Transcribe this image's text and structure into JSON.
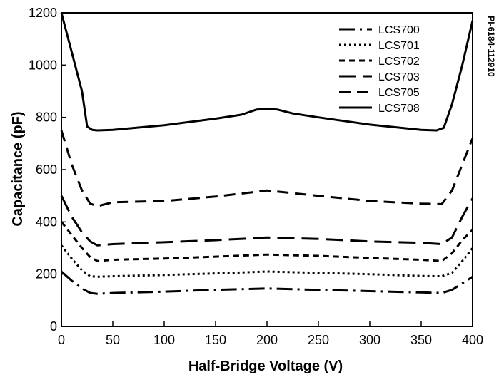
{
  "chart_data": {
    "type": "line",
    "xlabel": "Half-Bridge Voltage (V)",
    "ylabel": "Capacitance (pF)",
    "side_note": "PI-6184-112910",
    "xlim": [
      0,
      400
    ],
    "ylim": [
      0,
      1200
    ],
    "xticks": [
      0,
      50,
      100,
      150,
      200,
      250,
      300,
      350,
      400
    ],
    "yticks": [
      0,
      200,
      400,
      600,
      800,
      1000,
      1200
    ],
    "grid": false,
    "legend_position": "top-right",
    "series": [
      {
        "name": "LCS700",
        "dash": "long-dash-dot",
        "points": [
          [
            0,
            210
          ],
          [
            10,
            175
          ],
          [
            20,
            145
          ],
          [
            28,
            128
          ],
          [
            35,
            125
          ],
          [
            50,
            128
          ],
          [
            100,
            133
          ],
          [
            150,
            140
          ],
          [
            200,
            145
          ],
          [
            250,
            140
          ],
          [
            300,
            135
          ],
          [
            350,
            130
          ],
          [
            370,
            128
          ],
          [
            380,
            140
          ],
          [
            390,
            165
          ],
          [
            400,
            190
          ]
        ]
      },
      {
        "name": "LCS701",
        "dash": "dotted",
        "points": [
          [
            0,
            310
          ],
          [
            10,
            260
          ],
          [
            20,
            215
          ],
          [
            28,
            192
          ],
          [
            35,
            190
          ],
          [
            50,
            192
          ],
          [
            100,
            197
          ],
          [
            150,
            203
          ],
          [
            200,
            210
          ],
          [
            250,
            205
          ],
          [
            300,
            200
          ],
          [
            350,
            193
          ],
          [
            370,
            192
          ],
          [
            380,
            205
          ],
          [
            390,
            250
          ],
          [
            400,
            300
          ]
        ]
      },
      {
        "name": "LCS702",
        "dash": "short-dash",
        "points": [
          [
            0,
            400
          ],
          [
            10,
            350
          ],
          [
            20,
            300
          ],
          [
            28,
            265
          ],
          [
            35,
            250
          ],
          [
            50,
            255
          ],
          [
            100,
            260
          ],
          [
            150,
            267
          ],
          [
            200,
            275
          ],
          [
            250,
            270
          ],
          [
            300,
            262
          ],
          [
            350,
            255
          ],
          [
            370,
            250
          ],
          [
            380,
            280
          ],
          [
            390,
            330
          ],
          [
            400,
            370
          ]
        ]
      },
      {
        "name": "LCS703",
        "dash": "long-dash",
        "points": [
          [
            0,
            500
          ],
          [
            10,
            420
          ],
          [
            20,
            360
          ],
          [
            28,
            325
          ],
          [
            35,
            310
          ],
          [
            50,
            315
          ],
          [
            100,
            322
          ],
          [
            150,
            330
          ],
          [
            200,
            340
          ],
          [
            250,
            335
          ],
          [
            300,
            325
          ],
          [
            350,
            320
          ],
          [
            370,
            315
          ],
          [
            380,
            340
          ],
          [
            390,
            420
          ],
          [
            400,
            490
          ]
        ]
      },
      {
        "name": "LCS705",
        "dash": "medium-dash",
        "points": [
          [
            0,
            750
          ],
          [
            10,
            620
          ],
          [
            20,
            520
          ],
          [
            28,
            470
          ],
          [
            35,
            460
          ],
          [
            50,
            475
          ],
          [
            100,
            480
          ],
          [
            150,
            497
          ],
          [
            200,
            520
          ],
          [
            250,
            500
          ],
          [
            300,
            480
          ],
          [
            350,
            470
          ],
          [
            370,
            468
          ],
          [
            380,
            520
          ],
          [
            390,
            620
          ],
          [
            400,
            720
          ]
        ]
      },
      {
        "name": "LCS708",
        "dash": "solid",
        "points": [
          [
            0,
            1200
          ],
          [
            10,
            1050
          ],
          [
            20,
            900
          ],
          [
            25,
            765
          ],
          [
            30,
            752
          ],
          [
            35,
            750
          ],
          [
            50,
            752
          ],
          [
            100,
            770
          ],
          [
            150,
            795
          ],
          [
            175,
            810
          ],
          [
            190,
            830
          ],
          [
            200,
            832
          ],
          [
            210,
            830
          ],
          [
            225,
            815
          ],
          [
            250,
            800
          ],
          [
            300,
            772
          ],
          [
            350,
            752
          ],
          [
            365,
            750
          ],
          [
            372,
            760
          ],
          [
            380,
            850
          ],
          [
            390,
            1000
          ],
          [
            400,
            1170
          ]
        ]
      }
    ]
  }
}
